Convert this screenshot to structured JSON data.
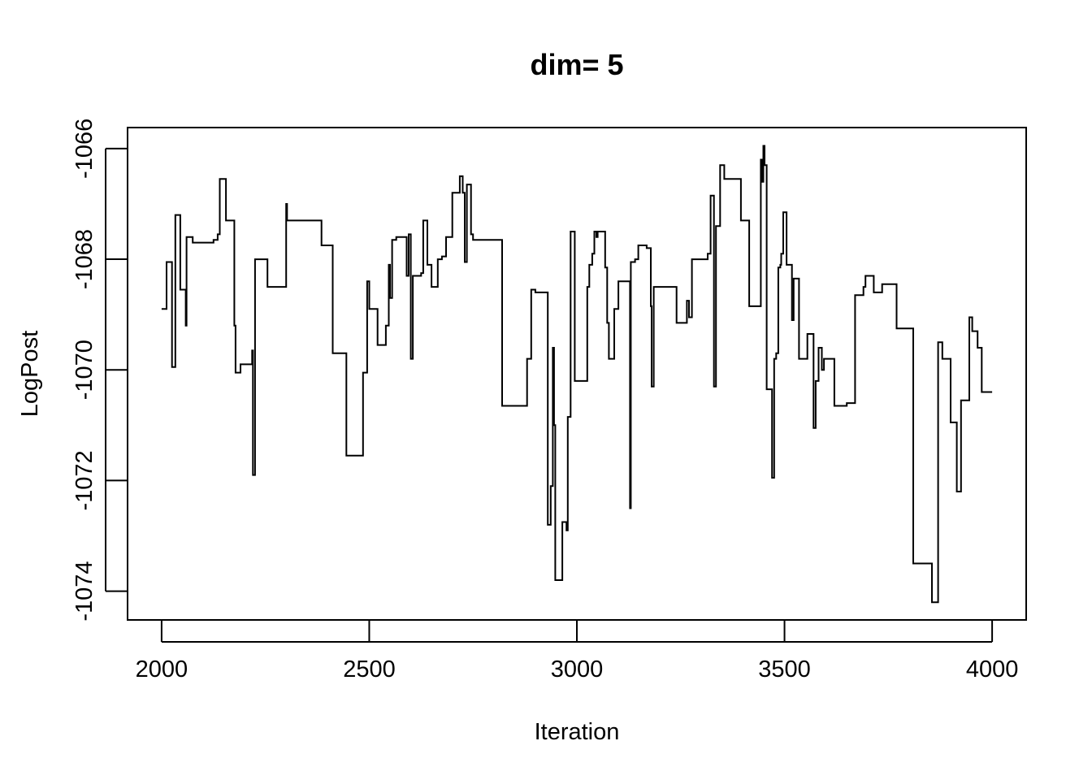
{
  "chart_data": {
    "type": "line",
    "title": "dim= 5",
    "xlabel": "Iteration",
    "ylabel": "LogPost",
    "xlim": [
      1918,
      4082
    ],
    "ylim": [
      -1074.52,
      -1065.62
    ],
    "x_ticks": [
      2000,
      2500,
      3000,
      3500,
      4000
    ],
    "x_tick_labels": [
      "2000",
      "2500",
      "3000",
      "3500",
      "4000"
    ],
    "y_ticks": [
      -1066,
      -1068,
      -1070,
      -1072,
      -1074
    ],
    "y_tick_labels": [
      "-1066",
      "-1068",
      "-1070",
      "-1072",
      "-1074"
    ],
    "grid": false,
    "step": "post",
    "series": [
      {
        "color": "#000000",
        "points": [
          [
            2000,
            -1068.9
          ],
          [
            2012,
            -1068.05
          ],
          [
            2025,
            -1069.95
          ],
          [
            2033,
            -1067.2
          ],
          [
            2045,
            -1068.55
          ],
          [
            2058,
            -1069.2
          ],
          [
            2060,
            -1067.6
          ],
          [
            2075,
            -1067.7
          ],
          [
            2125,
            -1067.65
          ],
          [
            2135,
            -1067.55
          ],
          [
            2140,
            -1066.55
          ],
          [
            2155,
            -1067.3
          ],
          [
            2175,
            -1069.2
          ],
          [
            2178,
            -1070.05
          ],
          [
            2190,
            -1069.9
          ],
          [
            2218,
            -1069.65
          ],
          [
            2220,
            -1071.9
          ],
          [
            2225,
            -1068
          ],
          [
            2255,
            -1068.5
          ],
          [
            2300,
            -1067
          ],
          [
            2302,
            -1067.3
          ],
          [
            2385,
            -1067.75
          ],
          [
            2412,
            -1069.7
          ],
          [
            2445,
            -1071.55
          ],
          [
            2485,
            -1070.05
          ],
          [
            2495,
            -1068.4
          ],
          [
            2500,
            -1068.9
          ],
          [
            2520,
            -1069.55
          ],
          [
            2540,
            -1069.2
          ],
          [
            2547,
            -1068.1
          ],
          [
            2550,
            -1068.7
          ],
          [
            2555,
            -1067.65
          ],
          [
            2565,
            -1067.6
          ],
          [
            2590,
            -1068.3
          ],
          [
            2595,
            -1067.55
          ],
          [
            2600,
            -1069.8
          ],
          [
            2605,
            -1068.3
          ],
          [
            2625,
            -1068.25
          ],
          [
            2630,
            -1067.3
          ],
          [
            2640,
            -1068.1
          ],
          [
            2650,
            -1068.5
          ],
          [
            2665,
            -1068
          ],
          [
            2675,
            -1067.95
          ],
          [
            2685,
            -1067.6
          ],
          [
            2700,
            -1066.8
          ],
          [
            2718,
            -1066.5
          ],
          [
            2725,
            -1066.8
          ],
          [
            2730,
            -1068.05
          ],
          [
            2735,
            -1066.65
          ],
          [
            2745,
            -1067.55
          ],
          [
            2750,
            -1067.65
          ],
          [
            2820,
            -1070.65
          ],
          [
            2880,
            -1069.8
          ],
          [
            2890,
            -1068.55
          ],
          [
            2900,
            -1068.6
          ],
          [
            2930,
            -1072.8
          ],
          [
            2937,
            -1072.1
          ],
          [
            2942,
            -1069.6
          ],
          [
            2945,
            -1071
          ],
          [
            2948,
            -1073.8
          ],
          [
            2965,
            -1072.75
          ],
          [
            2975,
            -1072.9
          ],
          [
            2978,
            -1070.85
          ],
          [
            2985,
            -1067.5
          ],
          [
            2995,
            -1070.2
          ],
          [
            3025,
            -1068.5
          ],
          [
            3030,
            -1068.1
          ],
          [
            3037,
            -1067.9
          ],
          [
            3042,
            -1067.5
          ],
          [
            3047,
            -1067.6
          ],
          [
            3050,
            -1067.5
          ],
          [
            3068,
            -1068.15
          ],
          [
            3073,
            -1069.15
          ],
          [
            3077,
            -1069.8
          ],
          [
            3090,
            -1068.9
          ],
          [
            3100,
            -1068.4
          ],
          [
            3128,
            -1072.5
          ],
          [
            3130,
            -1068.05
          ],
          [
            3140,
            -1068
          ],
          [
            3148,
            -1067.75
          ],
          [
            3168,
            -1067.8
          ],
          [
            3178,
            -1068.85
          ],
          [
            3180,
            -1070.3
          ],
          [
            3185,
            -1068.5
          ],
          [
            3240,
            -1069.15
          ],
          [
            3265,
            -1068.75
          ],
          [
            3270,
            -1069.05
          ],
          [
            3277,
            -1068
          ],
          [
            3315,
            -1067.9
          ],
          [
            3322,
            -1066.85
          ],
          [
            3330,
            -1070.3
          ],
          [
            3335,
            -1067.4
          ],
          [
            3345,
            -1066.3
          ],
          [
            3355,
            -1066.55
          ],
          [
            3395,
            -1067.3
          ],
          [
            3415,
            -1068.85
          ],
          [
            3443,
            -1066.2
          ],
          [
            3446,
            -1066.6
          ],
          [
            3449,
            -1065.95
          ],
          [
            3452,
            -1066.3
          ],
          [
            3457,
            -1070.35
          ],
          [
            3470,
            -1071.95
          ],
          [
            3475,
            -1069.8
          ],
          [
            3480,
            -1069.7
          ],
          [
            3485,
            -1068.15
          ],
          [
            3490,
            -1068.1
          ],
          [
            3492,
            -1067.9
          ],
          [
            3497,
            -1067.15
          ],
          [
            3505,
            -1068.1
          ],
          [
            3518,
            -1069.1
          ],
          [
            3522,
            -1068.35
          ],
          [
            3535,
            -1069.8
          ],
          [
            3555,
            -1069.35
          ],
          [
            3570,
            -1071.05
          ],
          [
            3575,
            -1070.2
          ],
          [
            3582,
            -1069.6
          ],
          [
            3590,
            -1070
          ],
          [
            3595,
            -1069.8
          ],
          [
            3620,
            -1070.65
          ],
          [
            3650,
            -1070.6
          ],
          [
            3670,
            -1068.65
          ],
          [
            3690,
            -1068.5
          ],
          [
            3695,
            -1068.3
          ],
          [
            3715,
            -1068.6
          ],
          [
            3735,
            -1068.45
          ],
          [
            3770,
            -1069.25
          ],
          [
            3810,
            -1073.5
          ],
          [
            3855,
            -1074.2
          ],
          [
            3870,
            -1069.5
          ],
          [
            3880,
            -1069.8
          ],
          [
            3900,
            -1070.95
          ],
          [
            3915,
            -1072.2
          ],
          [
            3925,
            -1070.55
          ],
          [
            3945,
            -1069.05
          ],
          [
            3952,
            -1069.3
          ],
          [
            3965,
            -1069.6
          ],
          [
            3975,
            -1070.4
          ],
          [
            4000,
            -1070.4
          ]
        ]
      }
    ]
  }
}
